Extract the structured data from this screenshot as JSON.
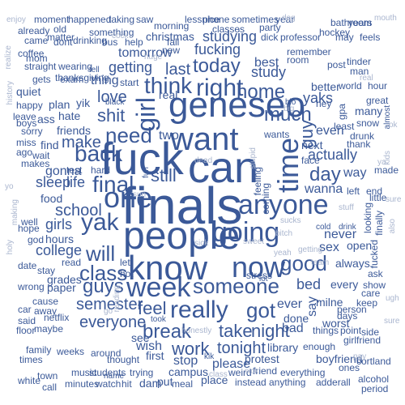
{
  "colors": {
    "background": "#ffffff",
    "primary": "#3b5998",
    "light": "#aab6cf"
  },
  "words": {
    "finals": "finals",
    "people": "people",
    "know": "know",
    "fuck": "fuck",
    "can": "can",
    "want": "want",
    "geneseo": "geneseo",
    "now": "now",
    "week": "week",
    "one": "one",
    "going": "going",
    "anyone": "anyone",
    "really": "really",
    "someone": "someone",
    "time": "time",
    "right": "right",
    "back": "back",
    "yak": "yak",
    "girl": "girl",
    "think": "think",
    "good": "good",
    "class": "class",
    "need": "need",
    "home": "home",
    "today": "today",
    "got": "got",
    "final": "final",
    "much": "much",
    "guys": "guys",
    "day": "day",
    "take": "take",
    "break": "break",
    "will": "will",
    "feel": "feel",
    "semester": "semester",
    "everyone": "everyone",
    "tonight": "tonight",
    "work": "work",
    "night": "night",
    "school": "school",
    "guy": "guy",
    "shit": "shit",
    "love": "love",
    "make": "make",
    "still": "still",
    "last": "last",
    "fucking": "fucking",
    "getting": "getting",
    "tomorrow": "tomorrow",
    "studying": "studying",
    "study": "study",
    "girls": "girls",
    "life": "life",
    "sleep": "sleep",
    "actually": "actually",
    "never": "never",
    "college": "college",
    "yaks": "yaks",
    "best": "best",
    "wanna": "wanna",
    "sex": "sex",
    "bad": "bad",
    "ever": "ever",
    "bed": "bed",
    "please": "please",
    "way": "way",
    "two": "two",
    "even": "even",
    "gonna": "gonna",
    "friends": "friends",
    "hours": "hours",
    "wish": "wish",
    "thing": "thing",
    "real": "real",
    "library": "library",
    "christmas": "christmas",
    "say": "say",
    "stop": "stop",
    "see": "see",
    "first": "first",
    "campus": "campus",
    "always": "always",
    "every": "every",
    "next": "next",
    "milne": "milne",
    "done": "done",
    "better": "better",
    "remember": "remember",
    "thanksgiving": "thanksgiving",
    "paper": "paper",
    "netflix": "netflix",
    "around": "around",
    "maybe": "maybe",
    "exam": "exam",
    "open": "open",
    "worst": "worst",
    "boyfriend": "boyfriend",
    "girlfriend": "girlfriend",
    "protest": "protest",
    "friend": "friend",
    "thought": "thought",
    "trying": "trying",
    "dam": "dam",
    "put": "put",
    "meal": "meal",
    "place": "place",
    "instead": "instead",
    "anything": "anything",
    "adderall": "adderall",
    "everything": "everything",
    "cortland": "cortland",
    "students": "students",
    "watch": "watch",
    "hit": "hit",
    "minutes": "minutes",
    "music": "music",
    "town": "town",
    "white": "white",
    "call": "call",
    "times": "times",
    "weeks": "weeks",
    "family": "family",
    "food": "food",
    "test": "test",
    "hard": "hard",
    "grades": "grades",
    "wrong": "wrong",
    "cause": "cause",
    "car": "car",
    "away": "away",
    "said": "said",
    "floor": "floor",
    "plan": "plan",
    "quiet": "quiet",
    "gets": "gets",
    "happy": "happy",
    "boys": "boys",
    "sorry": "sorry",
    "miss": "miss",
    "ago": "ago",
    "makes": "makes",
    "wait": "wait",
    "leave": "leave",
    "find": "find",
    "ass": "ass",
    "hate": "hate",
    "straight": "straight",
    "wearing": "wearing",
    "coffee": "coffee",
    "mom": "mom",
    "came": "came",
    "already": "already",
    "matter": "matter",
    "old": "old",
    "dont": "dont",
    "drinking": "drinking",
    "happened": "happened",
    "taking": "taking",
    "moment": "moment",
    "something": "something",
    "morning": "morning",
    "phone": "phone",
    "sometimes": "sometimes",
    "year": "year",
    "bathroom": "bathroom",
    "classes": "classes",
    "party": "party",
    "dick": "dick",
    "professor": "professor",
    "hockey": "hockey",
    "years": "years",
    "may": "may",
    "feels": "feels",
    "stress": "stress",
    "lot": "lot",
    "room": "room",
    "post": "post",
    "tinder": "tinder",
    "man": "man",
    "world": "world",
    "hour": "hour",
    "many": "many",
    "great": "great",
    "least": "least",
    "snow": "snow",
    "drunk": "drunk",
    "thank": "thank",
    "made": "made",
    "left": "left",
    "end": "end",
    "little": "little",
    "looking": "looking",
    "finally": "finally",
    "fucked": "fucked",
    "ask": "ask",
    "care": "care",
    "show": "show",
    "keep": "keep",
    "person": "person",
    "days": "days",
    "things": "things",
    "point": "point",
    "side": "side",
    "enough": "enough",
    "weird": "weird",
    "alcohol": "alcohol",
    "period": "period",
    "ones": "ones",
    "go": "go",
    "yik": "yik",
    "coming": "coming",
    "feeling": "feeling",
    "wants": "wants",
    "help": "help",
    "fall": "fall",
    "new": "new",
    "bus": "bus",
    "hot": "hot",
    "let": "let",
    "ya": "ya",
    "read": "read",
    "hope": "hope",
    "date": "date",
    "stay": "stay",
    "well": "well",
    "ok": "ok",
    "also": "also",
    "sure": "sure",
    "god": "god",
    "face": "face",
    "lessnice": "lessnice",
    "saw": "saw",
    "sucks": "sucks",
    "gpa": "gpa",
    "yeah": "yeah",
    "kids": "kids",
    "stupid": "stupid",
    "making": "making",
    "honestly": "honestly",
    "reading": "reading",
    "stuff": "stuff",
    "getting_small": "getting",
    "cold": "cold",
    "drink": "drink",
    "took": "took",
    "bio": "bio",
    "hey": "hey",
    "bitch": "bitch",
    "sure2": "sure",
    "kik": "kik",
    "name": "name",
    "big": "big",
    "real2": "real",
    "sun": "sun",
    "dead": "dead",
    "class2": "class",
    "start": "start",
    "tell": "tell",
    "almost": "almost",
    "black": "black",
    "fun": "fun",
    "enjoy": "enjoy",
    "realize": "realize",
    "history": "history",
    "yo": "yo",
    "holy": "holy",
    "dog": "dog",
    "mouth": "mouth",
    "cock": "cock",
    "sick": "sick",
    "team": "team",
    "huge": "huge",
    "sweet": "sweet",
    "ugh": "ugh",
    "pay": "pay"
  }
}
